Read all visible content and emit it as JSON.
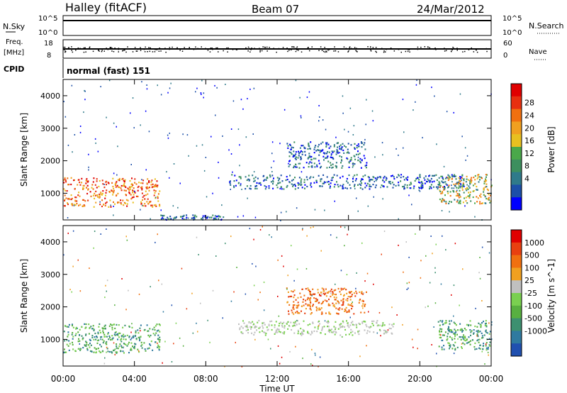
{
  "header": {
    "station": "Halley (fitACF)",
    "beam": "Beam 07",
    "date": "24/Mar/2012"
  },
  "status_panels": {
    "nsky_label": "N.Sky",
    "nsearch_label": "N.Search",
    "nsky_ticks": [
      "10^5",
      "10^0"
    ],
    "nsearch_ticks": [
      "10^5",
      "10^0"
    ],
    "freq_label_1": "Freq.",
    "freq_label_2": "[MHz]",
    "freq_ticks": [
      "18",
      "8"
    ],
    "nave_label": "Nave",
    "nave_ticks": [
      "60",
      "0"
    ],
    "cpid_label": "CPID",
    "cpid_value": "normal (fast) 151"
  },
  "chart_data": [
    {
      "type": "heatmap",
      "parameter": "power",
      "ylabel": "Slant Range [km]",
      "ylim": [
        180,
        4500
      ],
      "yticks": [
        1000,
        2000,
        3000,
        4000
      ],
      "xlim": [
        0,
        24
      ],
      "colorbar": {
        "label": "Power [dB]",
        "ticks": [
          "28",
          "24",
          "20",
          "16",
          "12",
          "8",
          "4"
        ],
        "colors": [
          "#0000ff",
          "#1c4fa8",
          "#2f7a8a",
          "#3d8f5e",
          "#4aa84a",
          "#e8c020",
          "#f0a020",
          "#f07010",
          "#e83010",
          "#e00000"
        ]
      },
      "regions": [
        {
          "t0": 0.0,
          "t1": 5.4,
          "r0": 600,
          "r1": 1500,
          "level": "strong"
        },
        {
          "t0": 5.4,
          "t1": 9.0,
          "r0": 200,
          "r1": 350,
          "level": "weak"
        },
        {
          "t0": 9.3,
          "t1": 22.5,
          "r0": 1150,
          "r1": 1600,
          "level": "weak"
        },
        {
          "t0": 12.5,
          "t1": 17.0,
          "r0": 1800,
          "r1": 2600,
          "level": "weak"
        },
        {
          "t0": 21.0,
          "t1": 24.0,
          "r0": 700,
          "r1": 1600,
          "level": "medium"
        }
      ]
    },
    {
      "type": "heatmap",
      "parameter": "velocity",
      "ylabel": "Slant Range [km]",
      "xlabel": "Time UT",
      "ylim": [
        180,
        4500
      ],
      "yticks": [
        1000,
        2000,
        3000,
        4000
      ],
      "xlim": [
        0,
        24
      ],
      "xtick_labels": [
        "00:00",
        "04:00",
        "08:00",
        "12:00",
        "16:00",
        "20:00",
        "00:00"
      ],
      "colorbar": {
        "label": "Velocity [m s^-1]",
        "ticks": [
          "1000",
          "500",
          "100",
          "25",
          "-25",
          "-100",
          "-500",
          "-1000"
        ],
        "colors": [
          "#2050b0",
          "#2f7aa0",
          "#3d9070",
          "#58b040",
          "#7ad050",
          "#c0c0c0",
          "#f0a020",
          "#f07010",
          "#e84010",
          "#e00000"
        ]
      },
      "regions": [
        {
          "t0": 0.0,
          "t1": 5.4,
          "r0": 600,
          "r1": 1500,
          "level": "toward"
        },
        {
          "t0": 9.8,
          "t1": 18.5,
          "r0": 1150,
          "r1": 1600,
          "level": "near-zero"
        },
        {
          "t0": 12.5,
          "t1": 17.0,
          "r0": 1800,
          "r1": 2600,
          "level": "away"
        },
        {
          "t0": 21.0,
          "t1": 24.0,
          "r0": 700,
          "r1": 1600,
          "level": "toward"
        }
      ]
    }
  ]
}
